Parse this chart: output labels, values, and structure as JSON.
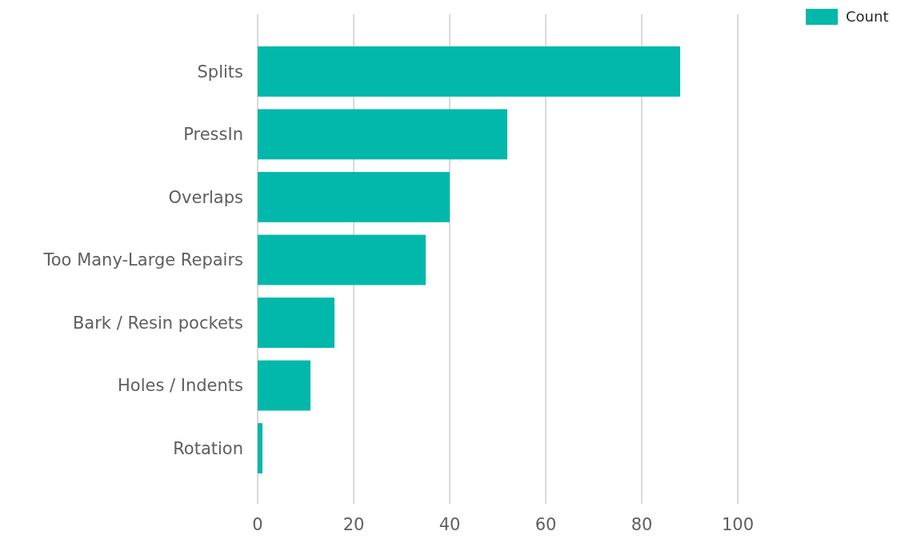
{
  "chart_data": {
    "type": "bar",
    "orientation": "horizontal",
    "categories": [
      "Splits",
      "PressIn",
      "Overlaps",
      "Too Many-Large Repairs",
      "Bark / Resin pockets",
      "Holes / Indents",
      "Rotation"
    ],
    "series": [
      {
        "name": "Count",
        "color": "#01b8aa",
        "values": [
          88,
          52,
          40,
          35,
          16,
          11,
          1
        ]
      }
    ],
    "xlim": [
      0,
      100
    ],
    "xticks": [
      0,
      20,
      40,
      60,
      80,
      100
    ],
    "grid": "x",
    "legend": "top right"
  }
}
